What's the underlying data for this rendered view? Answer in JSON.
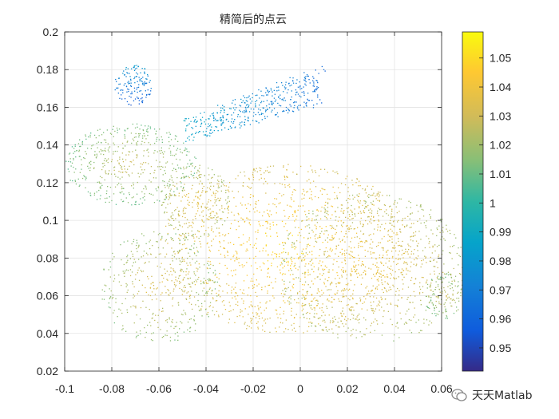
{
  "chart_data": {
    "type": "scatter",
    "title": "精简后的点云",
    "xlim": [
      -0.1,
      0.06
    ],
    "ylim": [
      0.02,
      0.2
    ],
    "x_ticks": [
      -0.1,
      -0.08,
      -0.06,
      -0.04,
      -0.02,
      0,
      0.02,
      0.04,
      0.06
    ],
    "x_tick_labels": [
      "-0.1",
      "-0.08",
      "-0.06",
      "-0.04",
      "-0.02",
      "0",
      "0.02",
      "0.04",
      "0.06"
    ],
    "y_ticks": [
      0.02,
      0.04,
      0.06,
      0.08,
      0.1,
      0.12,
      0.14,
      0.16,
      0.18,
      0.2
    ],
    "y_tick_labels": [
      "0.02",
      "0.04",
      "0.06",
      "0.08",
      "0.1",
      "0.12",
      "0.14",
      "0.16",
      "0.18",
      "0.2"
    ],
    "grid": true,
    "colormap": "parula",
    "colorbar": {
      "range": [
        0.942,
        1.059
      ],
      "ticks": [
        0.95,
        0.96,
        0.97,
        0.98,
        0.99,
        1,
        1.01,
        1.02,
        1.03,
        1.04,
        1.05
      ],
      "tick_labels": [
        "0.95",
        "0.96",
        "0.97",
        "0.98",
        "0.99",
        "1",
        "1.01",
        "1.02",
        "1.03",
        "1.04",
        "1.05"
      ]
    },
    "point_cloud": {
      "description_shape": "Stanford bunny silhouette (side view)",
      "regions": [
        {
          "part": "body",
          "center": [
            -0.005,
            0.085
          ],
          "radii": [
            0.055,
            0.045
          ],
          "value": 1.05
        },
        {
          "part": "rear",
          "center": [
            0.03,
            0.075
          ],
          "radii": [
            0.04,
            0.04
          ],
          "value": 1.04
        },
        {
          "part": "head",
          "center": [
            -0.072,
            0.13
          ],
          "radii": [
            0.028,
            0.022
          ],
          "value": 1.03
        },
        {
          "part": "front_lower",
          "center": [
            -0.06,
            0.065
          ],
          "radii": [
            0.025,
            0.03
          ],
          "value": 1.035
        },
        {
          "part": "neck",
          "center": [
            -0.045,
            0.11
          ],
          "radii": [
            0.015,
            0.02
          ],
          "value": 1.04
        },
        {
          "part": "tail",
          "center": [
            0.062,
            0.06
          ],
          "radii": [
            0.01,
            0.012
          ],
          "value": 1.03
        },
        {
          "part": "back_ear",
          "center": [
            -0.018,
            0.166
          ],
          "radii": [
            0.03,
            0.009
          ],
          "value": 1.0
        },
        {
          "part": "front_ear",
          "center": [
            -0.071,
            0.172
          ],
          "radii": [
            0.008,
            0.011
          ],
          "value": 0.97
        }
      ]
    }
  },
  "watermark": {
    "text": "天天Matlab"
  }
}
